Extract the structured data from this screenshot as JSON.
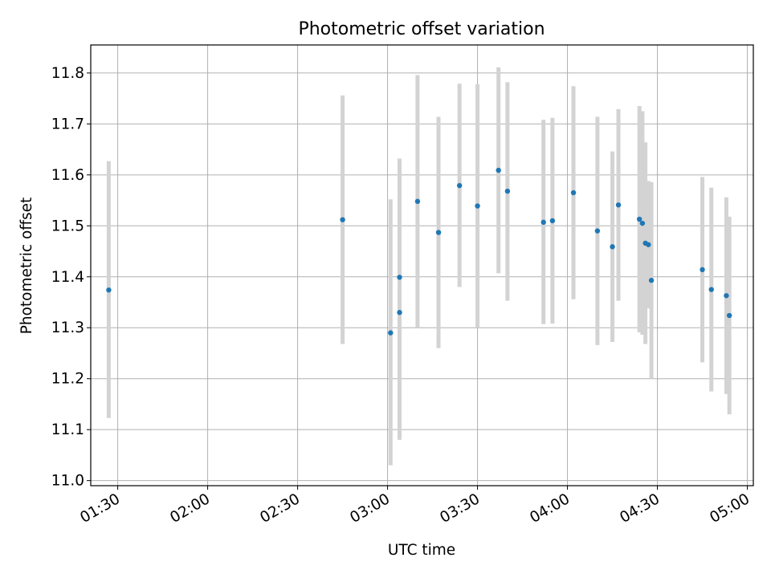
{
  "chart_data": {
    "type": "scatter",
    "title": "Photometric offset variation",
    "xlabel": "UTC time",
    "ylabel": "Photometric offset",
    "x_ticks": [
      "01:30",
      "02:00",
      "02:30",
      "03:00",
      "03:30",
      "04:00",
      "04:30",
      "05:00"
    ],
    "x_tick_minutes": [
      90,
      120,
      150,
      180,
      210,
      240,
      270,
      300
    ],
    "y_ticks": [
      "11.0",
      "11.1",
      "11.2",
      "11.3",
      "11.4",
      "11.5",
      "11.6",
      "11.7",
      "11.8"
    ],
    "xlim": [
      81,
      302
    ],
    "ylim": [
      10.99,
      11.855
    ],
    "grid": true,
    "marker_color": "#1f77b4",
    "errorbar_color": "#d3d3d3",
    "series": [
      {
        "points": [
          {
            "t": "01:27",
            "y": 11.374,
            "ylo": 11.123,
            "yhi": 11.627
          },
          {
            "t": "02:45",
            "y": 11.512,
            "ylo": 11.268,
            "yhi": 11.756
          },
          {
            "t": "03:01",
            "y": 11.29,
            "ylo": 11.03,
            "yhi": 11.552
          },
          {
            "t": "03:04",
            "y": 11.33,
            "ylo": 11.08,
            "yhi": 11.582
          },
          {
            "t": "03:04",
            "y": 11.399,
            "ylo": 11.167,
            "yhi": 11.632
          },
          {
            "t": "03:10",
            "y": 11.548,
            "ylo": 11.3,
            "yhi": 11.796
          },
          {
            "t": "03:17",
            "y": 11.487,
            "ylo": 11.26,
            "yhi": 11.714
          },
          {
            "t": "03:24",
            "y": 11.579,
            "ylo": 11.38,
            "yhi": 11.779
          },
          {
            "t": "03:30",
            "y": 11.539,
            "ylo": 11.3,
            "yhi": 11.778
          },
          {
            "t": "03:37",
            "y": 11.609,
            "ylo": 11.407,
            "yhi": 11.811
          },
          {
            "t": "03:40",
            "y": 11.568,
            "ylo": 11.353,
            "yhi": 11.782
          },
          {
            "t": "03:52",
            "y": 11.507,
            "ylo": 11.307,
            "yhi": 11.708
          },
          {
            "t": "03:55",
            "y": 11.51,
            "ylo": 11.308,
            "yhi": 11.712
          },
          {
            "t": "04:02",
            "y": 11.565,
            "ylo": 11.356,
            "yhi": 11.774
          },
          {
            "t": "04:10",
            "y": 11.49,
            "ylo": 11.266,
            "yhi": 11.714
          },
          {
            "t": "04:15",
            "y": 11.459,
            "ylo": 11.272,
            "yhi": 11.646
          },
          {
            "t": "04:17",
            "y": 11.541,
            "ylo": 11.353,
            "yhi": 11.729
          },
          {
            "t": "04:24",
            "y": 11.513,
            "ylo": 11.291,
            "yhi": 11.735
          },
          {
            "t": "04:25",
            "y": 11.505,
            "ylo": 11.286,
            "yhi": 11.725
          },
          {
            "t": "04:26",
            "y": 11.466,
            "ylo": 11.268,
            "yhi": 11.664
          },
          {
            "t": "04:27",
            "y": 11.463,
            "ylo": 11.338,
            "yhi": 11.588
          },
          {
            "t": "04:28",
            "y": 11.393,
            "ylo": 11.2,
            "yhi": 11.586
          },
          {
            "t": "04:45",
            "y": 11.414,
            "ylo": 11.232,
            "yhi": 11.596
          },
          {
            "t": "04:48",
            "y": 11.375,
            "ylo": 11.175,
            "yhi": 11.575
          },
          {
            "t": "04:53",
            "y": 11.363,
            "ylo": 11.17,
            "yhi": 11.556
          },
          {
            "t": "04:54",
            "y": 11.324,
            "ylo": 11.13,
            "yhi": 11.518
          }
        ]
      }
    ]
  }
}
